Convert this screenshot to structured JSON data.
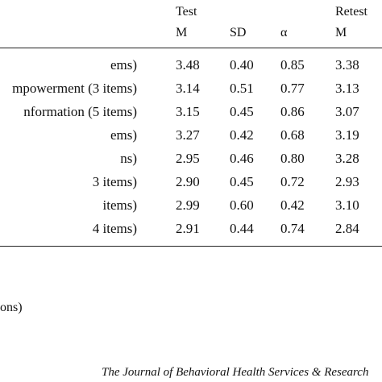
{
  "headers": {
    "test": "Test",
    "retest": "Retest",
    "columns": [
      "M",
      "SD",
      "α",
      "M"
    ]
  },
  "rows": [
    {
      "label": "ems)",
      "m": "3.48",
      "sd": "0.40",
      "alpha": "0.85",
      "rm": "3.38"
    },
    {
      "label": "mpowerment (3 items)",
      "m": "3.14",
      "sd": "0.51",
      "alpha": "0.77",
      "rm": "3.13"
    },
    {
      "label": "nformation (5 items)",
      "m": "3.15",
      "sd": "0.45",
      "alpha": "0.86",
      "rm": "3.07"
    },
    {
      "label": "ems)",
      "m": "3.27",
      "sd": "0.42",
      "alpha": "0.68",
      "rm": "3.19"
    },
    {
      "label": "ns)",
      "m": "2.95",
      "sd": "0.46",
      "alpha": "0.80",
      "rm": "3.28"
    },
    {
      "label": "3 items)",
      "m": "2.90",
      "sd": "0.45",
      "alpha": "0.72",
      "rm": "2.93"
    },
    {
      "label": "items)",
      "m": "2.99",
      "sd": "0.60",
      "alpha": "0.42",
      "rm": "3.10"
    },
    {
      "label": "4 items)",
      "m": "2.91",
      "sd": "0.44",
      "alpha": "0.74",
      "rm": "2.84"
    }
  ],
  "extra_text": "ons)",
  "journal": "The Journal of Behavioral Health Services & Research"
}
